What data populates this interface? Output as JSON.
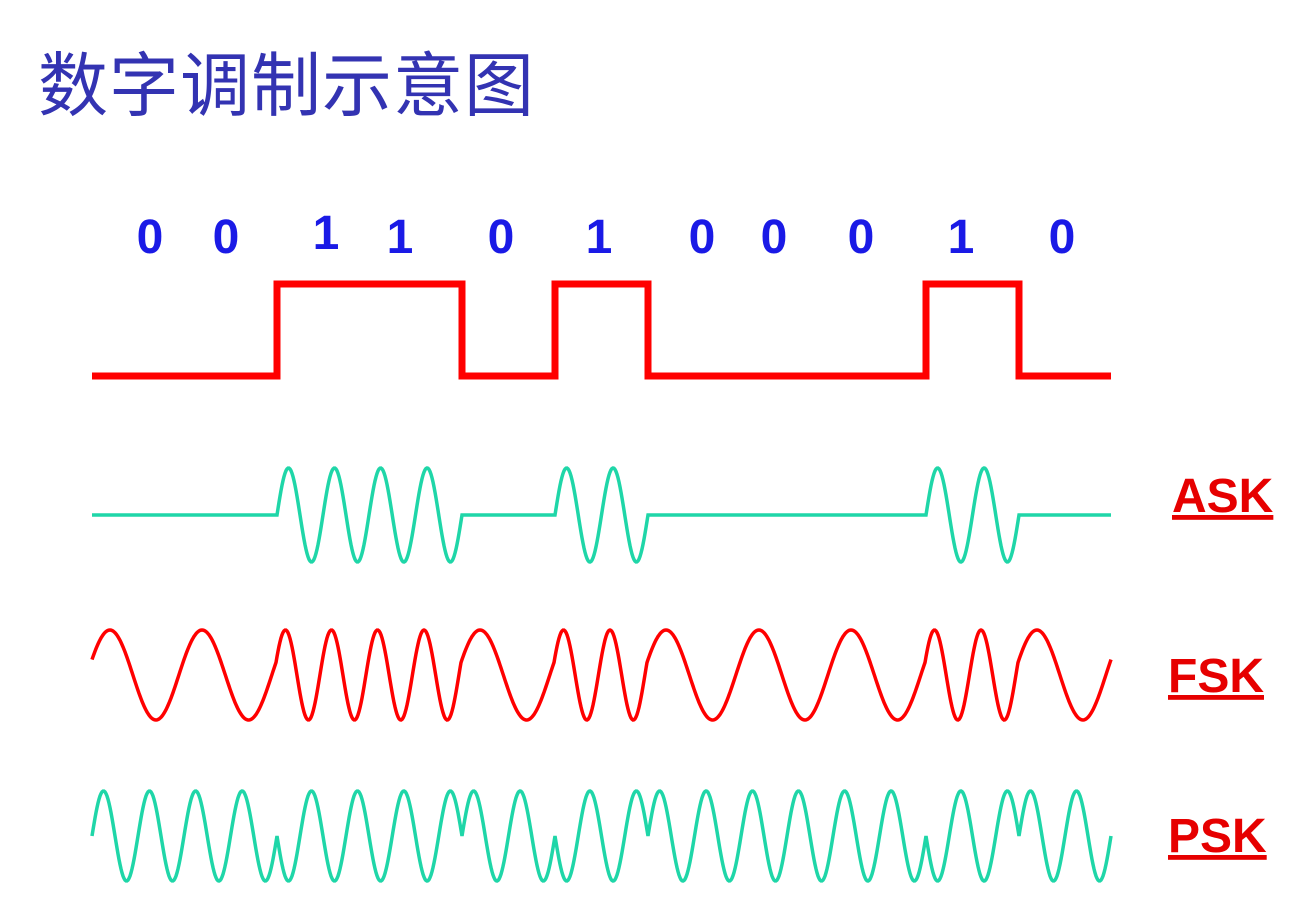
{
  "title": "数字调制示意图",
  "bits": [
    "0",
    "0",
    "1",
    "1",
    "0",
    "1",
    "0",
    "0",
    "0",
    "1",
    "0"
  ],
  "labels": {
    "ask": "ASK",
    "fsk": "FSK",
    "psk": "PSK"
  },
  "colors": {
    "title": "#3333b2",
    "bits": "#1a1ae6",
    "digital": "#ff0000",
    "ask": "#1fd6a8",
    "fsk": "#ff0000",
    "psk": "#1fd6a8",
    "labels": "#e60000"
  },
  "modulation": {
    "ask_cycles_per_bit": 2,
    "fsk_cycles_per_bit_one": 2,
    "fsk_cycles_per_bit_zero": 1,
    "psk_cycles_per_bit": 2
  }
}
